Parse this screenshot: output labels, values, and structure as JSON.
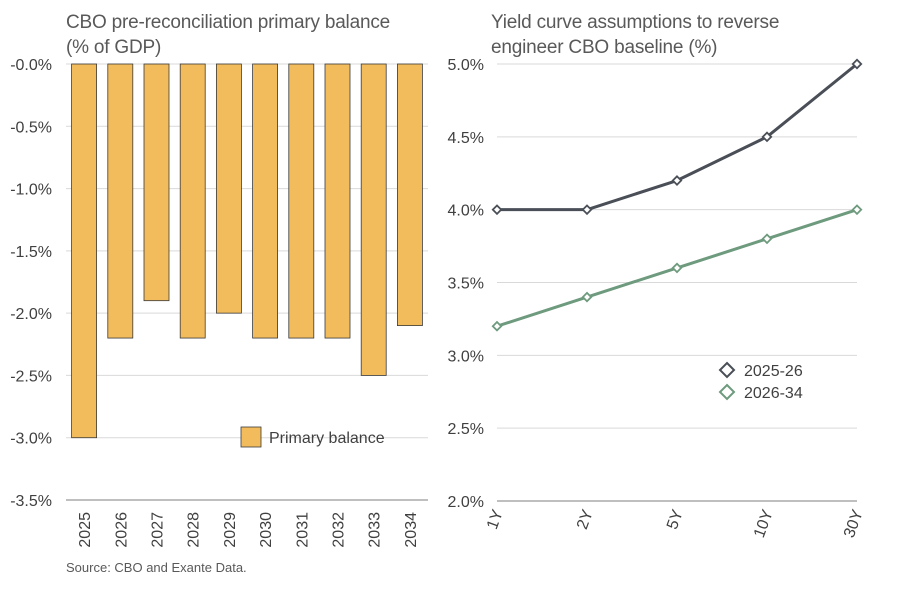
{
  "left_title": "CBO pre-reconciliation primary balance\n(% of GDP)",
  "right_title": "Yield curve assumptions to reverse\nengineer CBO baseline (%)",
  "source": "Source: CBO and Exante Data.",
  "colors": {
    "bar": "#f2bc5c",
    "bar_edge": "#3a3a3a",
    "series_2025_26": "#4a4f57",
    "series_2026_34": "#6e9a7e",
    "grid": "#d9d9d9"
  },
  "chart_data": [
    {
      "type": "bar",
      "title": "CBO pre-reconciliation primary balance (% of GDP)",
      "categories": [
        "2025",
        "2026",
        "2027",
        "2028",
        "2029",
        "2030",
        "2031",
        "2032",
        "2033",
        "2034"
      ],
      "values": [
        -3.0,
        -2.2,
        -1.9,
        -2.2,
        -2.0,
        -2.2,
        -2.2,
        -2.2,
        -2.5,
        -2.1
      ],
      "series_name": "Primary balance",
      "ylim": [
        -3.5,
        0.0
      ],
      "yticks": [
        0.0,
        -0.5,
        -1.0,
        -1.5,
        -2.0,
        -2.5,
        -3.0,
        -3.5
      ],
      "ytick_labels": [
        "-0.0%",
        "-0.5%",
        "-1.0%",
        "-1.5%",
        "-2.0%",
        "-2.5%",
        "-3.0%",
        "-3.5%"
      ],
      "legend": "bottom-right",
      "grid": true
    },
    {
      "type": "line",
      "title": "Yield curve assumptions to reverse engineer CBO baseline (%)",
      "categories": [
        "1Y",
        "2Y",
        "5Y",
        "10Y",
        "30Y"
      ],
      "series": [
        {
          "name": "2025-26",
          "values": [
            4.0,
            4.0,
            4.2,
            4.5,
            5.0
          ]
        },
        {
          "name": "2026-34",
          "values": [
            3.2,
            3.4,
            3.6,
            3.8,
            4.0
          ]
        }
      ],
      "ylim": [
        2.0,
        5.0
      ],
      "yticks": [
        2.0,
        2.5,
        3.0,
        3.5,
        4.0,
        4.5,
        5.0
      ],
      "ytick_labels": [
        "2.0%",
        "2.5%",
        "3.0%",
        "3.5%",
        "4.0%",
        "4.5%",
        "5.0%"
      ],
      "legend": "center-right",
      "grid": true
    }
  ]
}
